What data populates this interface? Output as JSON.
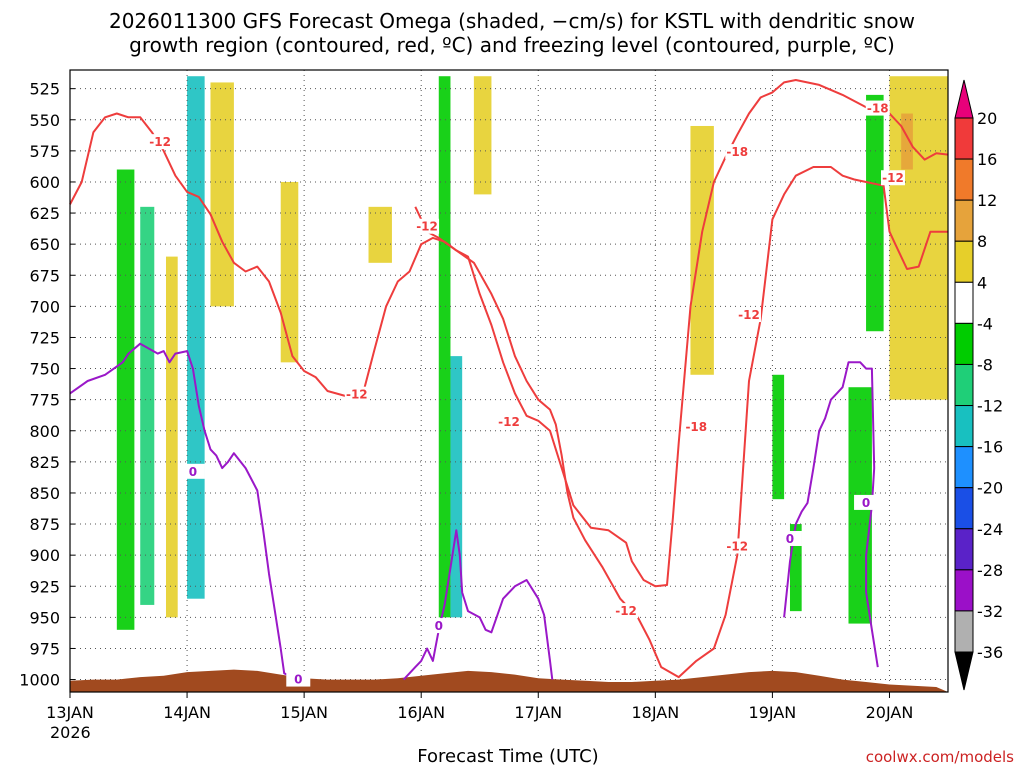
{
  "chart_data": {
    "type": "heatmap",
    "title_line1": "2026011300 GFS Forecast Omega (shaded, −cm/s) for KSTL with dendritic snow",
    "title_line2": "growth region (contoured, red, ºC) and freezing level (contoured, purple, ºC)",
    "xlabel": "Forecast Time (UTC)",
    "credit": "coolwx.com/models",
    "x_ticks": [
      "13JAN",
      "14JAN",
      "15JAN",
      "16JAN",
      "17JAN",
      "18JAN",
      "19JAN",
      "20JAN"
    ],
    "x_year_label": "2026",
    "xlim_days": [
      0,
      7.5
    ],
    "y_ticks": [
      "525",
      "550",
      "575",
      "600",
      "625",
      "650",
      "675",
      "700",
      "725",
      "750",
      "775",
      "800",
      "825",
      "850",
      "875",
      "900",
      "925",
      "950",
      "975",
      "1000"
    ],
    "ylim_hpa": [
      510,
      1010
    ],
    "colorbar_ticks": [
      "20",
      "16",
      "12",
      "8",
      "4",
      "-4",
      "-8",
      "-12",
      "-16",
      "-20",
      "-24",
      "-28",
      "-32",
      "-36"
    ],
    "colorbar_colors": [
      "#e8007a",
      "#f03a3a",
      "#f07a2a",
      "#e6a33b",
      "#e6cf2a",
      "#ffffff",
      "#00cc00",
      "#1fcf78",
      "#18c0c0",
      "#1e90ff",
      "#1a4fe6",
      "#5a22c8",
      "#9b10c8",
      "#b0b0b0",
      "#000000"
    ],
    "colors": {
      "dgz_contour": "#ee3d3d",
      "freezing_contour": "#9a18c8",
      "terrain": "#a14a1f",
      "grid": "#555555"
    },
    "contour_labels": [
      {
        "text": "-12",
        "color": "#ee3d3d",
        "day": 0.77,
        "p": 568
      },
      {
        "text": "-12",
        "color": "#ee3d3d",
        "day": 2.45,
        "p": 771
      },
      {
        "text": "-12",
        "color": "#ee3d3d",
        "day": 3.05,
        "p": 636
      },
      {
        "text": "-12",
        "color": "#ee3d3d",
        "day": 3.75,
        "p": 793
      },
      {
        "text": "-12",
        "color": "#ee3d3d",
        "day": 4.75,
        "p": 945
      },
      {
        "text": "-18",
        "color": "#ee3d3d",
        "day": 5.35,
        "p": 797
      },
      {
        "text": "-12",
        "color": "#ee3d3d",
        "day": 5.8,
        "p": 707
      },
      {
        "text": "-12",
        "color": "#ee3d3d",
        "day": 5.7,
        "p": 893
      },
      {
        "text": "-18",
        "color": "#ee3d3d",
        "day": 5.7,
        "p": 576
      },
      {
        "text": "-18",
        "color": "#ee3d3d",
        "day": 6.9,
        "p": 541
      },
      {
        "text": "-12",
        "color": "#ee3d3d",
        "day": 7.03,
        "p": 597
      },
      {
        "text": "0",
        "color": "#9a18c8",
        "day": 1.05,
        "p": 833
      },
      {
        "text": "0",
        "color": "#9a18c8",
        "day": 1.95,
        "p": 1000
      },
      {
        "text": "0",
        "color": "#9a18c8",
        "day": 3.15,
        "p": 957
      },
      {
        "text": "0",
        "color": "#9a18c8",
        "day": 6.15,
        "p": 887
      },
      {
        "text": "0",
        "color": "#9a18c8",
        "day": 6.8,
        "p": 858
      }
    ],
    "freezing_level_0C": [
      {
        "day": 0.0,
        "p": 770
      },
      {
        "day": 0.15,
        "p": 760
      },
      {
        "day": 0.3,
        "p": 755
      },
      {
        "day": 0.45,
        "p": 745
      },
      {
        "day": 0.5,
        "p": 738
      },
      {
        "day": 0.6,
        "p": 730
      },
      {
        "day": 0.75,
        "p": 738
      },
      {
        "day": 0.8,
        "p": 736
      },
      {
        "day": 0.85,
        "p": 745
      },
      {
        "day": 0.9,
        "p": 738
      },
      {
        "day": 1.0,
        "p": 736
      },
      {
        "day": 1.05,
        "p": 750
      },
      {
        "day": 1.1,
        "p": 780
      },
      {
        "day": 1.15,
        "p": 800
      },
      {
        "day": 1.2,
        "p": 815
      },
      {
        "day": 1.25,
        "p": 820
      },
      {
        "day": 1.3,
        "p": 830
      },
      {
        "day": 1.35,
        "p": 825
      },
      {
        "day": 1.4,
        "p": 818
      },
      {
        "day": 1.5,
        "p": 830
      },
      {
        "day": 1.6,
        "p": 848
      },
      {
        "day": 1.65,
        "p": 880
      },
      {
        "day": 1.7,
        "p": 915
      },
      {
        "day": 1.75,
        "p": 945
      },
      {
        "day": 1.8,
        "p": 975
      },
      {
        "day": 1.83,
        "p": 995
      },
      {
        "day": 1.9,
        "p": 998
      },
      {
        "day": 2.0,
        "p": 1000
      }
    ],
    "freezing_level_0C_b": [
      {
        "day": 2.85,
        "p": 1000
      },
      {
        "day": 2.9,
        "p": 995
      },
      {
        "day": 2.95,
        "p": 990
      },
      {
        "day": 3.0,
        "p": 985
      },
      {
        "day": 3.05,
        "p": 975
      },
      {
        "day": 3.1,
        "p": 985
      },
      {
        "day": 3.15,
        "p": 960
      },
      {
        "day": 3.2,
        "p": 940
      },
      {
        "day": 3.25,
        "p": 910
      },
      {
        "day": 3.3,
        "p": 880
      },
      {
        "day": 3.33,
        "p": 900
      },
      {
        "day": 3.35,
        "p": 930
      },
      {
        "day": 3.4,
        "p": 945
      },
      {
        "day": 3.5,
        "p": 950
      },
      {
        "day": 3.55,
        "p": 960
      },
      {
        "day": 3.6,
        "p": 962
      },
      {
        "day": 3.7,
        "p": 935
      },
      {
        "day": 3.8,
        "p": 925
      },
      {
        "day": 3.9,
        "p": 920
      },
      {
        "day": 4.0,
        "p": 935
      },
      {
        "day": 4.05,
        "p": 948
      },
      {
        "day": 4.1,
        "p": 985
      },
      {
        "day": 4.12,
        "p": 1000
      }
    ],
    "freezing_level_0C_c": [
      {
        "day": 6.1,
        "p": 950
      },
      {
        "day": 6.15,
        "p": 905
      },
      {
        "day": 6.2,
        "p": 875
      },
      {
        "day": 6.25,
        "p": 865
      },
      {
        "day": 6.3,
        "p": 858
      },
      {
        "day": 6.35,
        "p": 830
      },
      {
        "day": 6.4,
        "p": 800
      },
      {
        "day": 6.45,
        "p": 790
      },
      {
        "day": 6.5,
        "p": 775
      },
      {
        "day": 6.55,
        "p": 770
      },
      {
        "day": 6.6,
        "p": 765
      },
      {
        "day": 6.65,
        "p": 745
      },
      {
        "day": 6.75,
        "p": 745
      },
      {
        "day": 6.8,
        "p": 750
      },
      {
        "day": 6.85,
        "p": 750
      },
      {
        "day": 6.87,
        "p": 830
      },
      {
        "day": 6.85,
        "p": 860
      },
      {
        "day": 6.8,
        "p": 900
      },
      {
        "day": 6.8,
        "p": 930
      },
      {
        "day": 6.85,
        "p": 960
      },
      {
        "day": 6.9,
        "p": 990
      }
    ],
    "dgz_minus12_upper": [
      {
        "day": 0.0,
        "p": 618
      },
      {
        "day": 0.1,
        "p": 600
      },
      {
        "day": 0.2,
        "p": 560
      },
      {
        "day": 0.3,
        "p": 548
      },
      {
        "day": 0.4,
        "p": 545
      },
      {
        "day": 0.5,
        "p": 548
      },
      {
        "day": 0.6,
        "p": 548
      },
      {
        "day": 0.7,
        "p": 560
      },
      {
        "day": 0.8,
        "p": 575
      },
      {
        "day": 0.9,
        "p": 595
      },
      {
        "day": 1.0,
        "p": 608
      },
      {
        "day": 1.1,
        "p": 612
      },
      {
        "day": 1.2,
        "p": 626
      },
      {
        "day": 1.3,
        "p": 648
      },
      {
        "day": 1.4,
        "p": 665
      },
      {
        "day": 1.5,
        "p": 672
      },
      {
        "day": 1.6,
        "p": 668
      },
      {
        "day": 1.7,
        "p": 680
      },
      {
        "day": 1.8,
        "p": 705
      },
      {
        "day": 1.9,
        "p": 740
      },
      {
        "day": 2.0,
        "p": 752
      },
      {
        "day": 2.1,
        "p": 757
      },
      {
        "day": 2.2,
        "p": 768
      },
      {
        "day": 2.35,
        "p": 772
      },
      {
        "day": 2.5,
        "p": 771
      },
      {
        "day": 2.6,
        "p": 735
      },
      {
        "day": 2.7,
        "p": 700
      },
      {
        "day": 2.8,
        "p": 680
      },
      {
        "day": 2.9,
        "p": 672
      },
      {
        "day": 3.0,
        "p": 650
      },
      {
        "day": 3.1,
        "p": 645
      },
      {
        "day": 3.2,
        "p": 648
      },
      {
        "day": 3.3,
        "p": 655
      },
      {
        "day": 3.4,
        "p": 660
      },
      {
        "day": 3.5,
        "p": 690
      },
      {
        "day": 3.6,
        "p": 715
      },
      {
        "day": 3.7,
        "p": 745
      },
      {
        "day": 3.8,
        "p": 770
      },
      {
        "day": 3.9,
        "p": 788
      },
      {
        "day": 4.0,
        "p": 792
      },
      {
        "day": 4.1,
        "p": 800
      },
      {
        "day": 4.2,
        "p": 830
      },
      {
        "day": 4.3,
        "p": 860
      },
      {
        "day": 4.45,
        "p": 878
      },
      {
        "day": 4.6,
        "p": 880
      },
      {
        "day": 4.75,
        "p": 890
      },
      {
        "day": 4.8,
        "p": 905
      },
      {
        "day": 4.9,
        "p": 920
      },
      {
        "day": 5.0,
        "p": 925
      },
      {
        "day": 5.1,
        "p": 924
      },
      {
        "day": 5.15,
        "p": 870
      },
      {
        "day": 5.2,
        "p": 810
      },
      {
        "day": 5.3,
        "p": 700
      },
      {
        "day": 5.4,
        "p": 640
      },
      {
        "day": 5.5,
        "p": 600
      },
      {
        "day": 5.6,
        "p": 580
      },
      {
        "day": 5.7,
        "p": 562
      },
      {
        "day": 5.8,
        "p": 545
      },
      {
        "day": 5.9,
        "p": 532
      },
      {
        "day": 6.0,
        "p": 528
      },
      {
        "day": 6.1,
        "p": 520
      },
      {
        "day": 6.2,
        "p": 518
      },
      {
        "day": 6.4,
        "p": 522
      },
      {
        "day": 6.6,
        "p": 530
      },
      {
        "day": 6.8,
        "p": 540
      },
      {
        "day": 6.9,
        "p": 536
      },
      {
        "day": 7.0,
        "p": 545
      },
      {
        "day": 7.1,
        "p": 555
      },
      {
        "day": 7.2,
        "p": 572
      },
      {
        "day": 7.3,
        "p": 582
      },
      {
        "day": 7.4,
        "p": 577
      },
      {
        "day": 7.5,
        "p": 578
      }
    ],
    "dgz_minus12_lower": [
      {
        "day": 2.95,
        "p": 620
      },
      {
        "day": 3.05,
        "p": 640
      },
      {
        "day": 3.15,
        "p": 645
      },
      {
        "day": 3.3,
        "p": 655
      },
      {
        "day": 3.45,
        "p": 665
      },
      {
        "day": 3.6,
        "p": 690
      },
      {
        "day": 3.7,
        "p": 710
      },
      {
        "day": 3.8,
        "p": 740
      },
      {
        "day": 3.9,
        "p": 760
      },
      {
        "day": 4.0,
        "p": 775
      },
      {
        "day": 4.1,
        "p": 783
      },
      {
        "day": 4.15,
        "p": 795
      },
      {
        "day": 4.2,
        "p": 820
      },
      {
        "day": 4.25,
        "p": 850
      },
      {
        "day": 4.3,
        "p": 870
      },
      {
        "day": 4.4,
        "p": 888
      },
      {
        "day": 4.55,
        "p": 910
      },
      {
        "day": 4.7,
        "p": 935
      },
      {
        "day": 4.85,
        "p": 950
      },
      {
        "day": 4.95,
        "p": 968
      },
      {
        "day": 5.05,
        "p": 990
      },
      {
        "day": 5.2,
        "p": 998
      },
      {
        "day": 5.35,
        "p": 985
      },
      {
        "day": 5.5,
        "p": 975
      },
      {
        "day": 5.6,
        "p": 948
      },
      {
        "day": 5.7,
        "p": 900
      },
      {
        "day": 5.8,
        "p": 760
      },
      {
        "day": 5.9,
        "p": 710
      },
      {
        "day": 6.0,
        "p": 630
      },
      {
        "day": 6.1,
        "p": 610
      },
      {
        "day": 6.2,
        "p": 595
      },
      {
        "day": 6.35,
        "p": 588
      },
      {
        "day": 6.5,
        "p": 588
      },
      {
        "day": 6.6,
        "p": 595
      },
      {
        "day": 6.7,
        "p": 598
      },
      {
        "day": 6.8,
        "p": 600
      },
      {
        "day": 6.95,
        "p": 603
      },
      {
        "day": 7.0,
        "p": 640
      },
      {
        "day": 7.05,
        "p": 650
      },
      {
        "day": 7.15,
        "p": 670
      },
      {
        "day": 7.25,
        "p": 668
      },
      {
        "day": 7.35,
        "p": 640
      },
      {
        "day": 7.5,
        "p": 640
      }
    ],
    "omega_bands": [
      {
        "day0": 0.4,
        "day1": 0.55,
        "p_top": 590,
        "p_bot": 960,
        "color": "#00cc00"
      },
      {
        "day0": 0.6,
        "day1": 0.72,
        "p_top": 620,
        "p_bot": 940,
        "color": "#1fcf78"
      },
      {
        "day0": 0.82,
        "day1": 0.92,
        "p_top": 660,
        "p_bot": 950,
        "color": "#e6cf2a"
      },
      {
        "day0": 1.0,
        "day1": 1.15,
        "p_top": 515,
        "p_bot": 935,
        "color": "#18c0c0"
      },
      {
        "day0": 1.2,
        "day1": 1.4,
        "p_top": 520,
        "p_bot": 700,
        "color": "#e6cf2a"
      },
      {
        "day0": 1.8,
        "day1": 1.95,
        "p_top": 600,
        "p_bot": 745,
        "color": "#e6cf2a"
      },
      {
        "day0": 2.55,
        "day1": 2.75,
        "p_top": 620,
        "p_bot": 665,
        "color": "#e6cf2a"
      },
      {
        "day0": 3.15,
        "day1": 3.25,
        "p_top": 515,
        "p_bot": 950,
        "color": "#00cc00"
      },
      {
        "day0": 3.25,
        "day1": 3.35,
        "p_top": 740,
        "p_bot": 950,
        "color": "#18c0c0"
      },
      {
        "day0": 3.45,
        "day1": 3.6,
        "p_top": 515,
        "p_bot": 610,
        "color": "#e6cf2a"
      },
      {
        "day0": 5.3,
        "day1": 5.5,
        "p_top": 555,
        "p_bot": 755,
        "color": "#e6cf2a"
      },
      {
        "day0": 6.0,
        "day1": 6.1,
        "p_top": 755,
        "p_bot": 855,
        "color": "#00cc00"
      },
      {
        "day0": 6.15,
        "day1": 6.25,
        "p_top": 875,
        "p_bot": 945,
        "color": "#00cc00"
      },
      {
        "day0": 6.65,
        "day1": 6.85,
        "p_top": 765,
        "p_bot": 955,
        "color": "#00cc00"
      },
      {
        "day0": 6.8,
        "day1": 6.95,
        "p_top": 530,
        "p_bot": 720,
        "color": "#00cc00"
      },
      {
        "day0": 7.0,
        "day1": 7.5,
        "p_top": 515,
        "p_bot": 775,
        "color": "#e6cf2a"
      },
      {
        "day0": 7.1,
        "day1": 7.2,
        "p_top": 545,
        "p_bot": 590,
        "color": "#e6a33b"
      }
    ],
    "terrain_p": [
      1001,
      1000,
      1000,
      998,
      997,
      994,
      993,
      992,
      993,
      996,
      999,
      1000,
      1000,
      1000,
      999,
      997,
      995,
      993,
      994,
      996,
      999,
      1000,
      1001,
      1002,
      1002,
      1001,
      1000,
      998,
      996,
      994,
      993,
      994,
      997,
      1000,
      1002,
      1004,
      1005,
      1006
    ],
    "terrain_day_step": 0.2
  }
}
